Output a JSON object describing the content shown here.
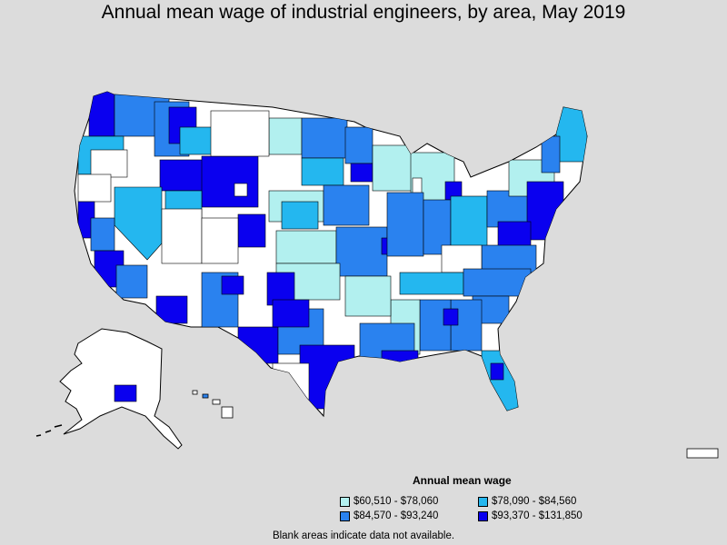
{
  "title": "Annual mean wage of industrial engineers, by area, May 2019",
  "legend": {
    "title": "Annual mean wage",
    "items": [
      {
        "label": "$60,510 - $78,060",
        "color": "#b2f0ef"
      },
      {
        "label": "$78,090 - $84,560",
        "color": "#24b7ef"
      },
      {
        "label": "$84,570 - $93,240",
        "color": "#2a82ef"
      },
      {
        "label": "$93,370 - $131,850",
        "color": "#0a00ef"
      }
    ]
  },
  "footnote": "Blank areas indicate data not available.",
  "colors": {
    "background": "#dcdcdc",
    "no_data": "#ffffff",
    "border": "#000000"
  }
}
